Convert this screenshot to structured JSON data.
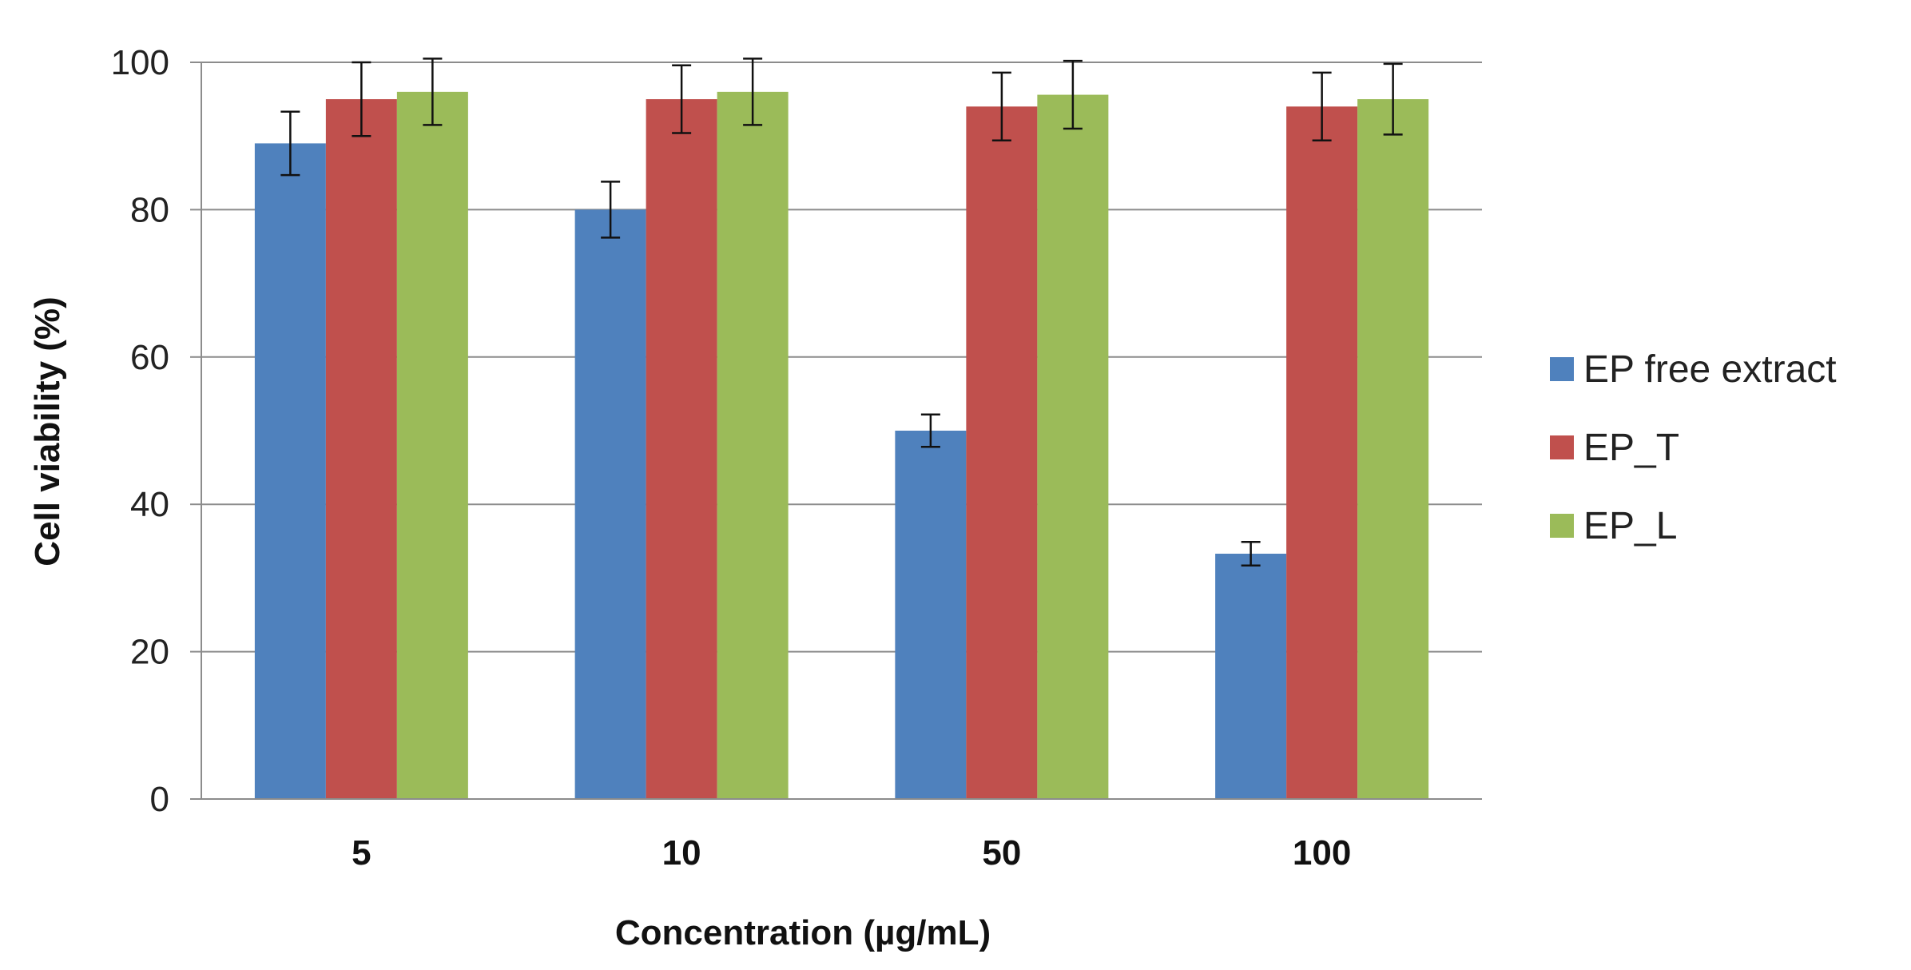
{
  "chart_data": {
    "type": "bar",
    "title": "",
    "xlabel": "Concentration (µg/mL)",
    "ylabel": "Cell viability (%)",
    "ylim": [
      0,
      100
    ],
    "yticks": [
      0,
      20,
      40,
      60,
      80,
      100
    ],
    "grid": true,
    "legend_position": "right",
    "categories": [
      "5",
      "10",
      "50",
      "100"
    ],
    "series": [
      {
        "name": "EP free extract",
        "color": "#4F81BD",
        "values": [
          89,
          80,
          50,
          33.3
        ],
        "errors": [
          4.3,
          3.8,
          2.2,
          1.6
        ]
      },
      {
        "name": "EP_T",
        "color": "#C0504D",
        "values": [
          95,
          95,
          94,
          94
        ],
        "errors": [
          5,
          4.6,
          4.6,
          4.6
        ]
      },
      {
        "name": "EP_L",
        "color": "#9BBB59",
        "values": [
          96,
          96,
          95.6,
          95
        ],
        "errors": [
          4.5,
          4.5,
          4.6,
          4.8
        ]
      }
    ]
  }
}
